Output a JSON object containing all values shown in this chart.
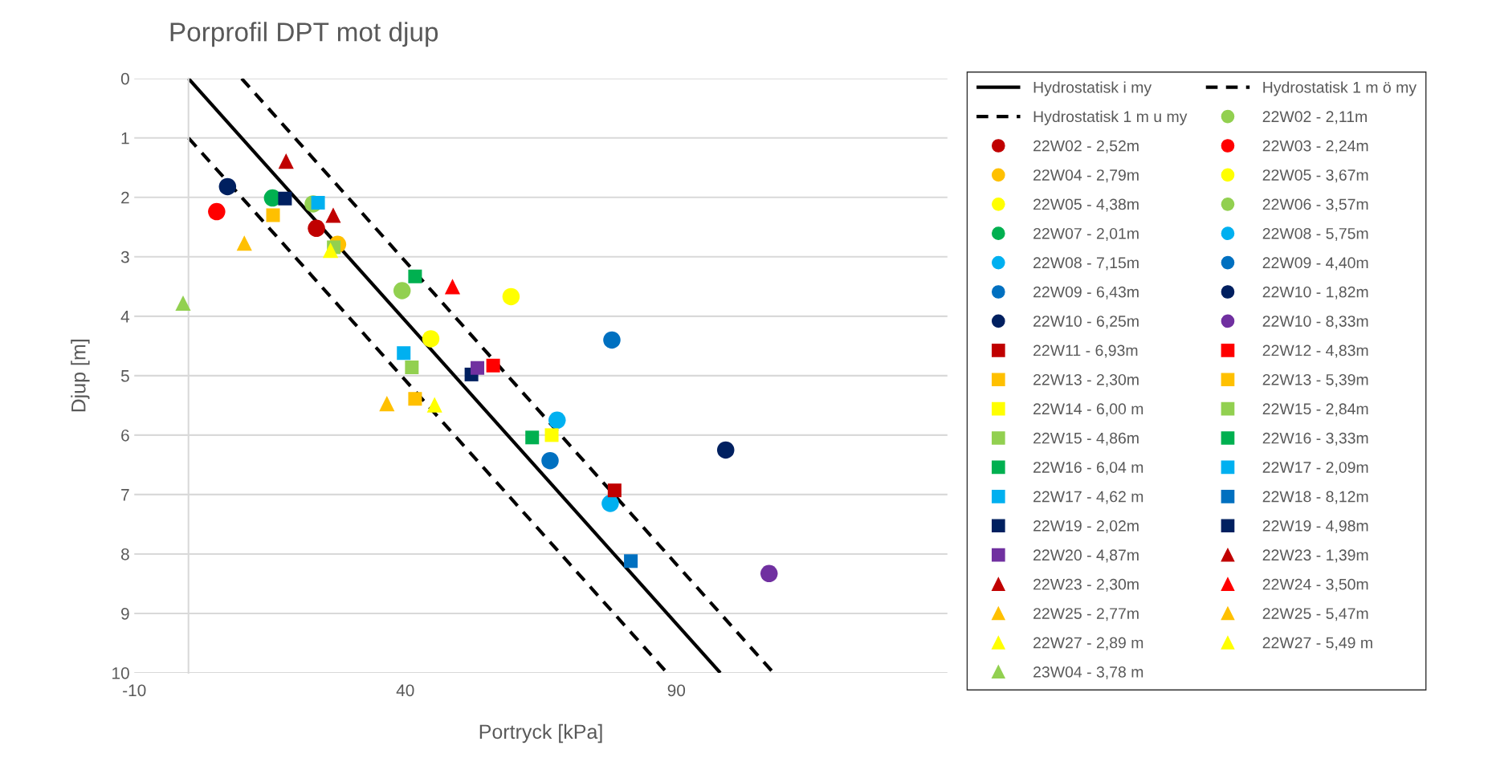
{
  "chart_data": {
    "type": "scatter",
    "title": "Porprofil DPT mot djup",
    "xlabel": "Portryck [kPa]",
    "ylabel": "Djup [m]",
    "xlim": [
      -10,
      140
    ],
    "xticks": [
      -10,
      40,
      90
    ],
    "ylim": [
      10,
      0
    ],
    "yticks": [
      0,
      1,
      2,
      3,
      4,
      5,
      6,
      7,
      8,
      9,
      10
    ],
    "grid": "y",
    "legend": "right",
    "series": [
      {
        "name": "Hydrostatisk i my",
        "type": "line",
        "color": "#000000",
        "line_style": "solid",
        "marker": "none",
        "x": [
          0,
          98.1
        ],
        "values": [
          0,
          10
        ]
      },
      {
        "name": "Hydrostatisk 1 m ö my",
        "type": "line",
        "color": "#000000",
        "line_style": "dashed",
        "marker": "none",
        "x": [
          9.81,
          107.91
        ],
        "values": [
          0,
          10
        ]
      },
      {
        "name": "Hydrostatisk 1 m u my",
        "type": "line",
        "color": "#000000",
        "line_style": "dashed",
        "marker": "none",
        "x": [
          0,
          88.29
        ],
        "values": [
          1,
          10
        ]
      },
      {
        "name": "22W02 - 2,11m",
        "color": "#92d050",
        "marker": "circle",
        "x": [
          23.0
        ],
        "values": [
          2.11
        ]
      },
      {
        "name": "22W02 - 2,52m",
        "color": "#c00000",
        "marker": "circle",
        "x": [
          23.6
        ],
        "values": [
          2.52
        ]
      },
      {
        "name": "22W03 - 2,24m",
        "color": "#ff0000",
        "marker": "circle",
        "x": [
          5.2
        ],
        "values": [
          2.24
        ]
      },
      {
        "name": "22W04 - 2,79m",
        "color": "#ffc000",
        "marker": "circle",
        "x": [
          27.5
        ],
        "values": [
          2.79
        ]
      },
      {
        "name": "22W05 - 3,67m",
        "color": "#ffff00",
        "marker": "circle",
        "x": [
          59.5
        ],
        "values": [
          3.67
        ]
      },
      {
        "name": "22W05 - 4,38m",
        "color": "#ffff00",
        "marker": "circle",
        "x": [
          44.7
        ],
        "values": [
          4.38
        ]
      },
      {
        "name": "22W06 - 3,57m",
        "color": "#92d050",
        "marker": "circle",
        "x": [
          39.4
        ],
        "values": [
          3.57
        ]
      },
      {
        "name": "22W07 - 2,01m",
        "color": "#00b050",
        "marker": "circle",
        "x": [
          15.5
        ],
        "values": [
          2.01
        ]
      },
      {
        "name": "22W08 - 5,75m",
        "color": "#00b0f0",
        "marker": "circle",
        "x": [
          68.0
        ],
        "values": [
          5.75
        ]
      },
      {
        "name": "22W08 - 7,15m",
        "color": "#00b0f0",
        "marker": "circle",
        "x": [
          77.8
        ],
        "values": [
          7.15
        ]
      },
      {
        "name": "22W09 - 4,40m",
        "color": "#0070c0",
        "marker": "circle",
        "x": [
          78.1
        ],
        "values": [
          4.4
        ]
      },
      {
        "name": "22W09 - 6,43m",
        "color": "#0070c0",
        "marker": "circle",
        "x": [
          66.7
        ],
        "values": [
          6.43
        ]
      },
      {
        "name": "22W10 - 1,82m",
        "color": "#002060",
        "marker": "circle",
        "x": [
          7.2
        ],
        "values": [
          1.82
        ]
      },
      {
        "name": "22W10 - 6,25m",
        "color": "#002060",
        "marker": "circle",
        "x": [
          99.1
        ],
        "values": [
          6.25
        ]
      },
      {
        "name": "22W10 - 8,33m",
        "color": "#7030a0",
        "marker": "circle",
        "x": [
          107.1
        ],
        "values": [
          8.33
        ]
      },
      {
        "name": "22W11 - 6,93m",
        "color": "#c00000",
        "marker": "square",
        "x": [
          78.6
        ],
        "values": [
          6.93
        ]
      },
      {
        "name": "22W12 - 4,83m",
        "color": "#ff0000",
        "marker": "square",
        "x": [
          56.2
        ],
        "values": [
          4.83
        ]
      },
      {
        "name": "22W13 - 2,30m",
        "color": "#ffc000",
        "marker": "square",
        "x": [
          15.6
        ],
        "values": [
          2.3
        ]
      },
      {
        "name": "22W13 - 5,39m",
        "color": "#ffc000",
        "marker": "square",
        "x": [
          41.8
        ],
        "values": [
          5.39
        ]
      },
      {
        "name": "22W14 - 6,00 m",
        "color": "#ffff00",
        "marker": "square",
        "x": [
          67.0
        ],
        "values": [
          6.0
        ]
      },
      {
        "name": "22W15 - 2,84m",
        "color": "#92d050",
        "marker": "square",
        "x": [
          26.8
        ],
        "values": [
          2.84
        ]
      },
      {
        "name": "22W15 - 4,86m",
        "color": "#92d050",
        "marker": "square",
        "x": [
          41.2
        ],
        "values": [
          4.86
        ]
      },
      {
        "name": "22W16 - 3,33m",
        "color": "#00b050",
        "marker": "square",
        "x": [
          41.8
        ],
        "values": [
          3.33
        ]
      },
      {
        "name": "22W16 - 6,04 m",
        "color": "#00b050",
        "marker": "square",
        "x": [
          63.4
        ],
        "values": [
          6.04
        ]
      },
      {
        "name": "22W17 - 2,09m",
        "color": "#00b0f0",
        "marker": "square",
        "x": [
          23.9
        ],
        "values": [
          2.09
        ]
      },
      {
        "name": "22W17 - 4,62 m",
        "color": "#00b0f0",
        "marker": "square",
        "x": [
          39.7
        ],
        "values": [
          4.62
        ]
      },
      {
        "name": "22W18 - 8,12m",
        "color": "#0070c0",
        "marker": "square",
        "x": [
          81.6
        ],
        "values": [
          8.12
        ]
      },
      {
        "name": "22W19 - 2,02m",
        "color": "#002060",
        "marker": "square",
        "x": [
          17.8
        ],
        "values": [
          2.02
        ]
      },
      {
        "name": "22W19 - 4,98m",
        "color": "#002060",
        "marker": "square",
        "x": [
          52.2
        ],
        "values": [
          4.98
        ]
      },
      {
        "name": "22W20 - 4,87m",
        "color": "#7030a0",
        "marker": "square",
        "x": [
          53.3
        ],
        "values": [
          4.87
        ]
      },
      {
        "name": "22W23 - 1,39m",
        "color": "#c00000",
        "marker": "triangle",
        "x": [
          18.0
        ],
        "values": [
          1.39
        ]
      },
      {
        "name": "22W23 - 2,30m",
        "color": "#c00000",
        "marker": "triangle",
        "x": [
          26.7
        ],
        "values": [
          2.3
        ]
      },
      {
        "name": "22W24 - 3,50m",
        "color": "#ff0000",
        "marker": "triangle",
        "x": [
          48.7
        ],
        "values": [
          3.5
        ]
      },
      {
        "name": "22W25 - 2,77m",
        "color": "#ffc000",
        "marker": "triangle",
        "x": [
          10.3
        ],
        "values": [
          2.77
        ]
      },
      {
        "name": "22W25 - 5,47m",
        "color": "#ffc000",
        "marker": "triangle",
        "x": [
          36.6
        ],
        "values": [
          5.47
        ]
      },
      {
        "name": "22W27 - 2,89 m",
        "color": "#ffff00",
        "marker": "triangle",
        "x": [
          26.2
        ],
        "values": [
          2.89
        ]
      },
      {
        "name": "22W27 - 5,49 m",
        "color": "#ffff00",
        "marker": "triangle",
        "x": [
          45.4
        ],
        "values": [
          5.49
        ]
      },
      {
        "name": "23W04 - 3,78 m",
        "color": "#92d050",
        "marker": "triangle",
        "x": [
          -1.0
        ],
        "values": [
          3.78
        ]
      }
    ]
  }
}
